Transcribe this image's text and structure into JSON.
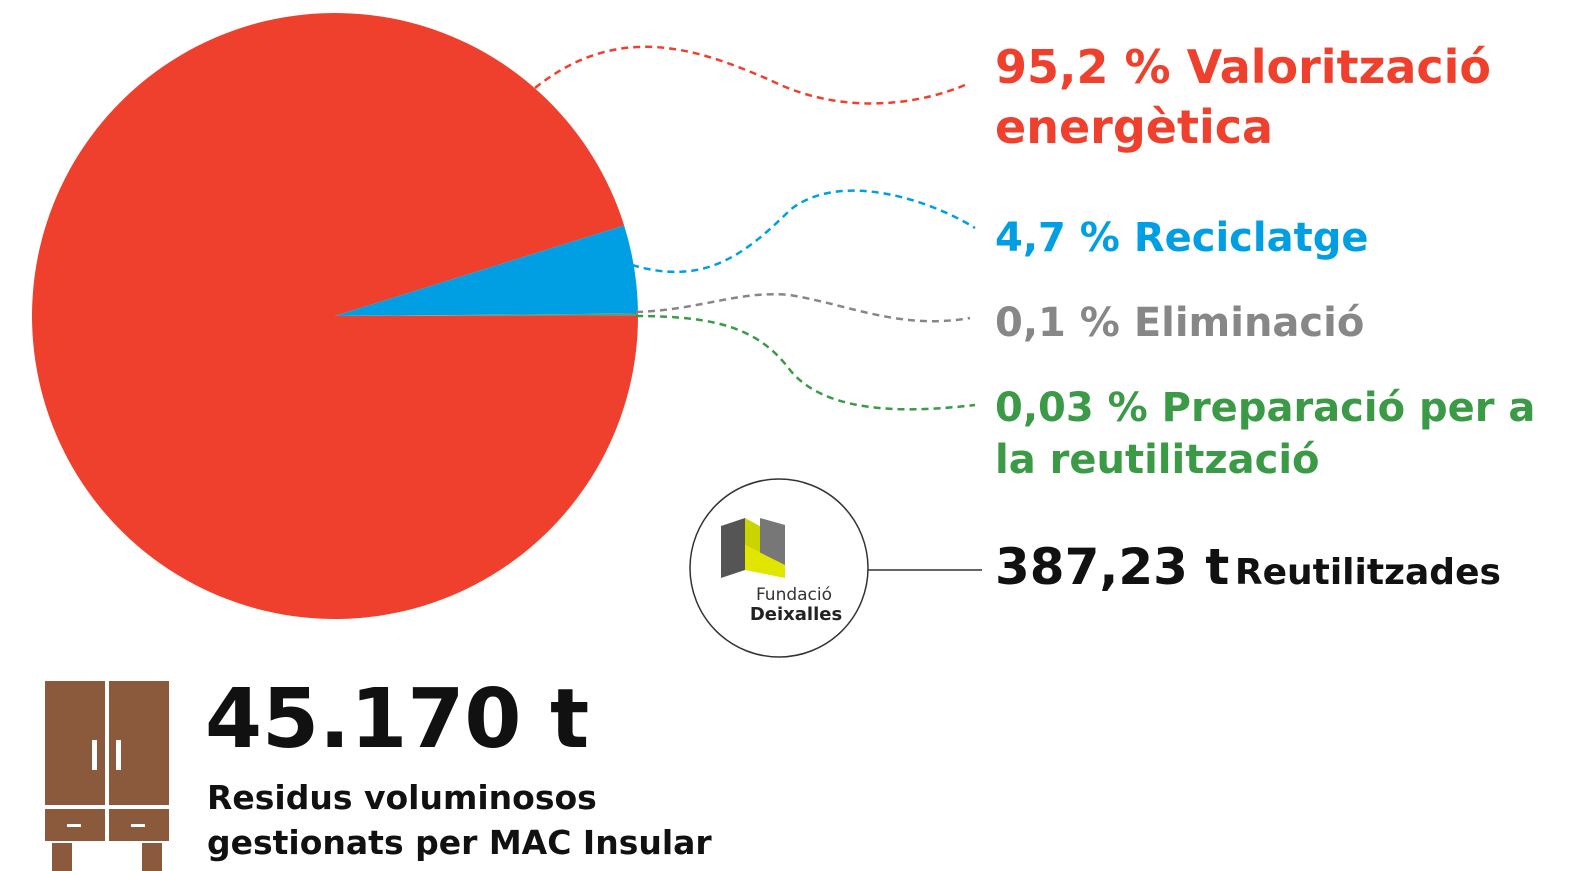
{
  "chart_data": {
    "type": "pie",
    "categories": [
      "Valorització energètica",
      "Reciclatge",
      "Eliminació",
      "Preparació per a la reutilització"
    ],
    "values": [
      95.2,
      4.7,
      0.1,
      0.03
    ],
    "value_labels": [
      "95,2 %",
      "4,7 %",
      "0,1 %",
      "0,03 %"
    ],
    "colors": [
      "#ef402d",
      "#009fe3",
      "#878787",
      "#3a9a45"
    ],
    "annotations": {
      "reused_amount": "387,23 t",
      "reused_label": "Reutilitzades",
      "logo_line1": "Fundació",
      "logo_line2": "Deixalles",
      "total_amount": "45.170 t",
      "total_label": "Residus voluminosos gestionats per MAC Insular"
    }
  }
}
